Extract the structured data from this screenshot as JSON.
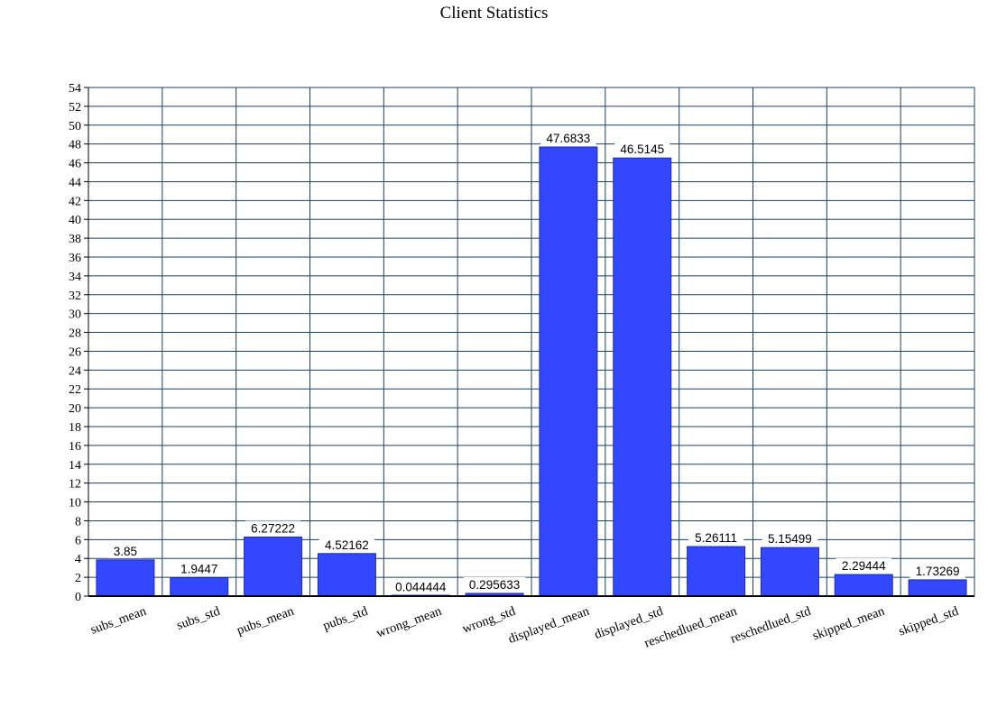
{
  "chart_data": {
    "type": "bar",
    "title": "Client Statistics",
    "xlabel": "",
    "ylabel": "",
    "categories": [
      "subs_mean",
      "subs_std",
      "pubs_mean",
      "pubs_std",
      "wrong_mean",
      "wrong_std",
      "displayed_mean",
      "displayed_std",
      "reschedlued_mean",
      "reschedlued_std",
      "skipped_mean",
      "skipped_std"
    ],
    "values": [
      3.85,
      1.9447,
      6.27222,
      4.52162,
      0.044444,
      0.295633,
      47.6833,
      46.5145,
      5.26111,
      5.15499,
      2.29444,
      1.73269
    ],
    "value_labels": [
      "3.85",
      "1.9447",
      "6.27222",
      "4.52162",
      "0.044444",
      "0.295633",
      "47.6833",
      "46.5145",
      "5.26111",
      "5.15499",
      "2.29444",
      "1.73269"
    ],
    "ylim": [
      0,
      54
    ],
    "y_tick_step": 2,
    "grid": true,
    "legend": "none",
    "colors": {
      "bar": "#3347ff",
      "bar_edge": "#1f2bb0",
      "grid": "#1f3f5f",
      "axis": "#000000",
      "background": "#ffffff"
    }
  }
}
